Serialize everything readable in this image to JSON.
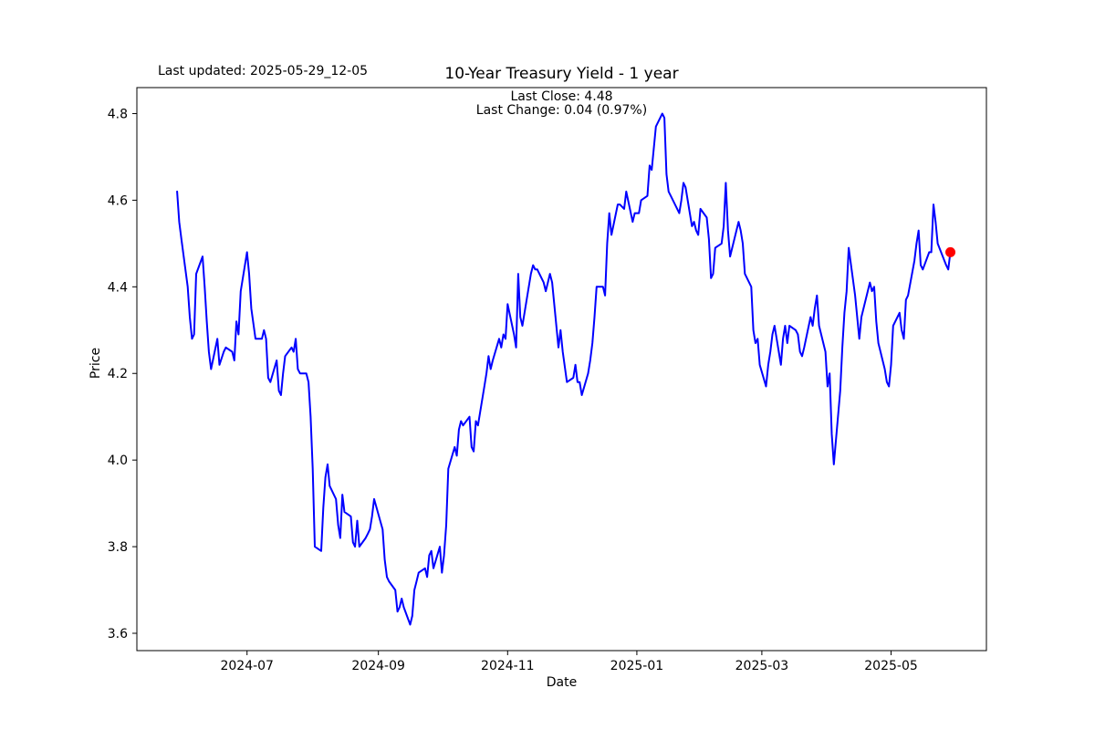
{
  "header": {
    "last_updated": "Last updated: 2025-05-29_12-05"
  },
  "chart_data": {
    "type": "line",
    "title": "10-Year Treasury Yield - 1 year",
    "annotations": [
      "Last Close: 4.48",
      "Last Change: 0.04 (0.97%)"
    ],
    "xlabel": "Date",
    "ylabel": "Price",
    "line_color": "#0000ff",
    "marker_color": "#ff0000",
    "background_color": "#ffffff",
    "grid": false,
    "legend": null,
    "ylim": [
      3.56,
      4.86
    ],
    "xlim": [
      "2024-05-10",
      "2025-06-15"
    ],
    "yticks": [
      3.6,
      3.8,
      4.0,
      4.2,
      4.4,
      4.6,
      4.8
    ],
    "xticks": [
      {
        "label": "2024-07",
        "date": "2024-07-01"
      },
      {
        "label": "2024-09",
        "date": "2024-09-01"
      },
      {
        "label": "2024-11",
        "date": "2024-11-01"
      },
      {
        "label": "2025-01",
        "date": "2025-01-01"
      },
      {
        "label": "2025-03",
        "date": "2025-03-01"
      },
      {
        "label": "2025-05",
        "date": "2025-05-01"
      }
    ],
    "last_point": {
      "date": "2025-05-29",
      "value": 4.48,
      "marker": "circle",
      "color": "#ff0000"
    },
    "series": [
      {
        "name": "10-Year Treasury Yield",
        "points": [
          [
            "2024-05-29",
            4.62
          ],
          [
            "2024-05-30",
            4.55
          ],
          [
            "2024-05-31",
            4.51
          ],
          [
            "2024-06-03",
            4.4
          ],
          [
            "2024-06-04",
            4.33
          ],
          [
            "2024-06-05",
            4.28
          ],
          [
            "2024-06-06",
            4.29
          ],
          [
            "2024-06-07",
            4.43
          ],
          [
            "2024-06-10",
            4.47
          ],
          [
            "2024-06-11",
            4.4
          ],
          [
            "2024-06-12",
            4.32
          ],
          [
            "2024-06-13",
            4.25
          ],
          [
            "2024-06-14",
            4.21
          ],
          [
            "2024-06-17",
            4.28
          ],
          [
            "2024-06-18",
            4.22
          ],
          [
            "2024-06-20",
            4.25
          ],
          [
            "2024-06-21",
            4.26
          ],
          [
            "2024-06-24",
            4.25
          ],
          [
            "2024-06-25",
            4.23
          ],
          [
            "2024-06-26",
            4.32
          ],
          [
            "2024-06-27",
            4.29
          ],
          [
            "2024-06-28",
            4.39
          ],
          [
            "2024-07-01",
            4.48
          ],
          [
            "2024-07-02",
            4.43
          ],
          [
            "2024-07-03",
            4.35
          ],
          [
            "2024-07-05",
            4.28
          ],
          [
            "2024-07-08",
            4.28
          ],
          [
            "2024-07-09",
            4.3
          ],
          [
            "2024-07-10",
            4.28
          ],
          [
            "2024-07-11",
            4.19
          ],
          [
            "2024-07-12",
            4.18
          ],
          [
            "2024-07-15",
            4.23
          ],
          [
            "2024-07-16",
            4.16
          ],
          [
            "2024-07-17",
            4.15
          ],
          [
            "2024-07-18",
            4.2
          ],
          [
            "2024-07-19",
            4.24
          ],
          [
            "2024-07-22",
            4.26
          ],
          [
            "2024-07-23",
            4.25
          ],
          [
            "2024-07-24",
            4.28
          ],
          [
            "2024-07-25",
            4.21
          ],
          [
            "2024-07-26",
            4.2
          ],
          [
            "2024-07-29",
            4.2
          ],
          [
            "2024-07-30",
            4.18
          ],
          [
            "2024-07-31",
            4.1
          ],
          [
            "2024-08-01",
            3.98
          ],
          [
            "2024-08-02",
            3.8
          ],
          [
            "2024-08-05",
            3.79
          ],
          [
            "2024-08-06",
            3.89
          ],
          [
            "2024-08-07",
            3.96
          ],
          [
            "2024-08-08",
            3.99
          ],
          [
            "2024-08-09",
            3.94
          ],
          [
            "2024-08-12",
            3.91
          ],
          [
            "2024-08-13",
            3.85
          ],
          [
            "2024-08-14",
            3.82
          ],
          [
            "2024-08-15",
            3.92
          ],
          [
            "2024-08-16",
            3.88
          ],
          [
            "2024-08-19",
            3.87
          ],
          [
            "2024-08-20",
            3.81
          ],
          [
            "2024-08-21",
            3.8
          ],
          [
            "2024-08-22",
            3.86
          ],
          [
            "2024-08-23",
            3.8
          ],
          [
            "2024-08-26",
            3.82
          ],
          [
            "2024-08-27",
            3.83
          ],
          [
            "2024-08-28",
            3.84
          ],
          [
            "2024-08-29",
            3.87
          ],
          [
            "2024-08-30",
            3.91
          ],
          [
            "2024-09-03",
            3.84
          ],
          [
            "2024-09-04",
            3.77
          ],
          [
            "2024-09-05",
            3.73
          ],
          [
            "2024-09-06",
            3.72
          ],
          [
            "2024-09-09",
            3.7
          ],
          [
            "2024-09-10",
            3.65
          ],
          [
            "2024-09-11",
            3.66
          ],
          [
            "2024-09-12",
            3.68
          ],
          [
            "2024-09-13",
            3.66
          ],
          [
            "2024-09-16",
            3.62
          ],
          [
            "2024-09-17",
            3.64
          ],
          [
            "2024-09-18",
            3.7
          ],
          [
            "2024-09-19",
            3.72
          ],
          [
            "2024-09-20",
            3.74
          ],
          [
            "2024-09-23",
            3.75
          ],
          [
            "2024-09-24",
            3.73
          ],
          [
            "2024-09-25",
            3.78
          ],
          [
            "2024-09-26",
            3.79
          ],
          [
            "2024-09-27",
            3.75
          ],
          [
            "2024-09-30",
            3.8
          ],
          [
            "2024-10-01",
            3.74
          ],
          [
            "2024-10-02",
            3.78
          ],
          [
            "2024-10-03",
            3.85
          ],
          [
            "2024-10-04",
            3.98
          ],
          [
            "2024-10-07",
            4.03
          ],
          [
            "2024-10-08",
            4.01
          ],
          [
            "2024-10-09",
            4.07
          ],
          [
            "2024-10-10",
            4.09
          ],
          [
            "2024-10-11",
            4.08
          ],
          [
            "2024-10-14",
            4.1
          ],
          [
            "2024-10-15",
            4.03
          ],
          [
            "2024-10-16",
            4.02
          ],
          [
            "2024-10-17",
            4.09
          ],
          [
            "2024-10-18",
            4.08
          ],
          [
            "2024-10-21",
            4.17
          ],
          [
            "2024-10-22",
            4.2
          ],
          [
            "2024-10-23",
            4.24
          ],
          [
            "2024-10-24",
            4.21
          ],
          [
            "2024-10-25",
            4.23
          ],
          [
            "2024-10-28",
            4.28
          ],
          [
            "2024-10-29",
            4.26
          ],
          [
            "2024-10-30",
            4.29
          ],
          [
            "2024-10-31",
            4.28
          ],
          [
            "2024-11-01",
            4.36
          ],
          [
            "2024-11-04",
            4.29
          ],
          [
            "2024-11-05",
            4.26
          ],
          [
            "2024-11-06",
            4.43
          ],
          [
            "2024-11-07",
            4.33
          ],
          [
            "2024-11-08",
            4.31
          ],
          [
            "2024-11-12",
            4.43
          ],
          [
            "2024-11-13",
            4.45
          ],
          [
            "2024-11-14",
            4.44
          ],
          [
            "2024-11-15",
            4.44
          ],
          [
            "2024-11-18",
            4.41
          ],
          [
            "2024-11-19",
            4.39
          ],
          [
            "2024-11-20",
            4.41
          ],
          [
            "2024-11-21",
            4.43
          ],
          [
            "2024-11-22",
            4.41
          ],
          [
            "2024-11-25",
            4.26
          ],
          [
            "2024-11-26",
            4.3
          ],
          [
            "2024-11-27",
            4.25
          ],
          [
            "2024-11-29",
            4.18
          ],
          [
            "2024-12-02",
            4.19
          ],
          [
            "2024-12-03",
            4.22
          ],
          [
            "2024-12-04",
            4.18
          ],
          [
            "2024-12-05",
            4.18
          ],
          [
            "2024-12-06",
            4.15
          ],
          [
            "2024-12-09",
            4.2
          ],
          [
            "2024-12-10",
            4.23
          ],
          [
            "2024-12-11",
            4.27
          ],
          [
            "2024-12-12",
            4.33
          ],
          [
            "2024-12-13",
            4.4
          ],
          [
            "2024-12-16",
            4.4
          ],
          [
            "2024-12-17",
            4.38
          ],
          [
            "2024-12-18",
            4.5
          ],
          [
            "2024-12-19",
            4.57
          ],
          [
            "2024-12-20",
            4.52
          ],
          [
            "2024-12-23",
            4.59
          ],
          [
            "2024-12-24",
            4.59
          ],
          [
            "2024-12-26",
            4.58
          ],
          [
            "2024-12-27",
            4.62
          ],
          [
            "2024-12-30",
            4.55
          ],
          [
            "2024-12-31",
            4.57
          ],
          [
            "2025-01-02",
            4.57
          ],
          [
            "2025-01-03",
            4.6
          ],
          [
            "2025-01-06",
            4.61
          ],
          [
            "2025-01-07",
            4.68
          ],
          [
            "2025-01-08",
            4.67
          ],
          [
            "2025-01-10",
            4.77
          ],
          [
            "2025-01-13",
            4.8
          ],
          [
            "2025-01-14",
            4.79
          ],
          [
            "2025-01-15",
            4.66
          ],
          [
            "2025-01-16",
            4.62
          ],
          [
            "2025-01-17",
            4.61
          ],
          [
            "2025-01-21",
            4.57
          ],
          [
            "2025-01-22",
            4.6
          ],
          [
            "2025-01-23",
            4.64
          ],
          [
            "2025-01-24",
            4.63
          ],
          [
            "2025-01-27",
            4.54
          ],
          [
            "2025-01-28",
            4.55
          ],
          [
            "2025-01-29",
            4.53
          ],
          [
            "2025-01-30",
            4.52
          ],
          [
            "2025-01-31",
            4.58
          ],
          [
            "2025-02-03",
            4.56
          ],
          [
            "2025-02-04",
            4.51
          ],
          [
            "2025-02-05",
            4.42
          ],
          [
            "2025-02-06",
            4.43
          ],
          [
            "2025-02-07",
            4.49
          ],
          [
            "2025-02-10",
            4.5
          ],
          [
            "2025-02-11",
            4.54
          ],
          [
            "2025-02-12",
            4.64
          ],
          [
            "2025-02-13",
            4.53
          ],
          [
            "2025-02-14",
            4.47
          ],
          [
            "2025-02-18",
            4.55
          ],
          [
            "2025-02-19",
            4.53
          ],
          [
            "2025-02-20",
            4.5
          ],
          [
            "2025-02-21",
            4.43
          ],
          [
            "2025-02-24",
            4.4
          ],
          [
            "2025-02-25",
            4.3
          ],
          [
            "2025-02-26",
            4.27
          ],
          [
            "2025-02-27",
            4.28
          ],
          [
            "2025-02-28",
            4.22
          ],
          [
            "2025-03-03",
            4.17
          ],
          [
            "2025-03-04",
            4.22
          ],
          [
            "2025-03-05",
            4.25
          ],
          [
            "2025-03-06",
            4.29
          ],
          [
            "2025-03-07",
            4.31
          ],
          [
            "2025-03-10",
            4.22
          ],
          [
            "2025-03-11",
            4.28
          ],
          [
            "2025-03-12",
            4.31
          ],
          [
            "2025-03-13",
            4.27
          ],
          [
            "2025-03-14",
            4.31
          ],
          [
            "2025-03-17",
            4.3
          ],
          [
            "2025-03-18",
            4.29
          ],
          [
            "2025-03-19",
            4.25
          ],
          [
            "2025-03-20",
            4.24
          ],
          [
            "2025-03-21",
            4.26
          ],
          [
            "2025-03-24",
            4.33
          ],
          [
            "2025-03-25",
            4.31
          ],
          [
            "2025-03-26",
            4.35
          ],
          [
            "2025-03-27",
            4.38
          ],
          [
            "2025-03-28",
            4.31
          ],
          [
            "2025-03-31",
            4.25
          ],
          [
            "2025-04-01",
            4.17
          ],
          [
            "2025-04-02",
            4.2
          ],
          [
            "2025-04-03",
            4.06
          ],
          [
            "2025-04-04",
            3.99
          ],
          [
            "2025-04-07",
            4.16
          ],
          [
            "2025-04-08",
            4.26
          ],
          [
            "2025-04-09",
            4.34
          ],
          [
            "2025-04-10",
            4.39
          ],
          [
            "2025-04-11",
            4.49
          ],
          [
            "2025-04-14",
            4.38
          ],
          [
            "2025-04-15",
            4.33
          ],
          [
            "2025-04-16",
            4.28
          ],
          [
            "2025-04-17",
            4.33
          ],
          [
            "2025-04-21",
            4.41
          ],
          [
            "2025-04-22",
            4.39
          ],
          [
            "2025-04-23",
            4.4
          ],
          [
            "2025-04-24",
            4.32
          ],
          [
            "2025-04-25",
            4.27
          ],
          [
            "2025-04-28",
            4.21
          ],
          [
            "2025-04-29",
            4.18
          ],
          [
            "2025-04-30",
            4.17
          ],
          [
            "2025-05-01",
            4.22
          ],
          [
            "2025-05-02",
            4.31
          ],
          [
            "2025-05-05",
            4.34
          ],
          [
            "2025-05-06",
            4.3
          ],
          [
            "2025-05-07",
            4.28
          ],
          [
            "2025-05-08",
            4.37
          ],
          [
            "2025-05-09",
            4.38
          ],
          [
            "2025-05-12",
            4.46
          ],
          [
            "2025-05-13",
            4.5
          ],
          [
            "2025-05-14",
            4.53
          ],
          [
            "2025-05-15",
            4.45
          ],
          [
            "2025-05-16",
            4.44
          ],
          [
            "2025-05-19",
            4.48
          ],
          [
            "2025-05-20",
            4.48
          ],
          [
            "2025-05-21",
            4.59
          ],
          [
            "2025-05-22",
            4.55
          ],
          [
            "2025-05-23",
            4.5
          ],
          [
            "2025-05-27",
            4.45
          ],
          [
            "2025-05-28",
            4.44
          ],
          [
            "2025-05-29",
            4.48
          ]
        ]
      }
    ]
  }
}
